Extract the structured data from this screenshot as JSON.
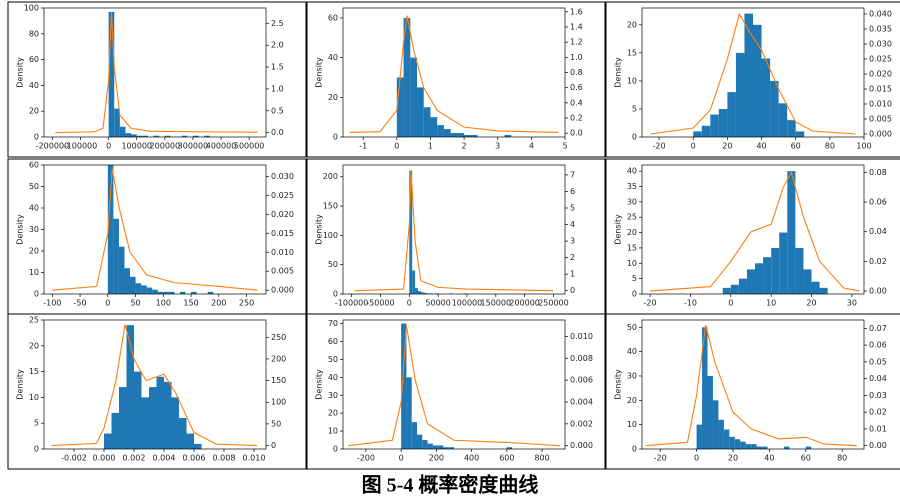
{
  "chart_data": [
    {
      "type": "histogram",
      "ylabel": "Density",
      "color": "#1f77b4",
      "bins": [
        0,
        20000,
        40000,
        60000,
        80000,
        100000,
        120000,
        140000,
        160000,
        180000,
        200000,
        220000,
        240000,
        260000,
        280000,
        300000,
        320000,
        340000,
        360000
      ],
      "values": [
        97,
        22,
        8,
        3,
        2,
        1,
        1,
        0,
        1,
        0,
        1,
        0,
        0,
        1,
        0,
        1,
        0,
        1
      ],
      "series": [
        {
          "color": "#ff7f0e",
          "axis": "y2",
          "x": [
            -190000,
            -50000,
            -20000,
            0,
            10000,
            20000,
            40000,
            80000,
            150000,
            300000,
            530000
          ],
          "values": [
            0,
            0.02,
            0.1,
            1.2,
            2.75,
            1.5,
            0.4,
            0.1,
            0.03,
            0.02,
            0.01
          ]
        }
      ],
      "xlim": [
        -230000,
        560000
      ],
      "xticks": [
        -200000,
        -100000,
        0,
        100000,
        200000,
        300000,
        400000,
        500000
      ],
      "ylim": [
        0,
        100
      ],
      "yticks": [
        0,
        20,
        40,
        60,
        80,
        100
      ],
      "y2lim": [
        -0.1,
        2.85
      ],
      "y2ticks": [
        {
          "value": 0,
          "label": "0.0"
        },
        0.5,
        {
          "value": 1,
          "label": "1.0"
        },
        1.5,
        {
          "value": 2,
          "label": "2.0"
        },
        2.5
      ]
    },
    {
      "type": "histogram",
      "ylabel": "Density",
      "color": "#1f77b4",
      "bins": [
        0,
        0.2,
        0.4,
        0.6,
        0.8,
        1,
        1.2,
        1.4,
        1.6,
        1.8,
        2,
        2.2,
        2.4,
        2.6,
        2.8,
        3,
        3.2,
        3.4
      ],
      "values": [
        30,
        60,
        40,
        25,
        15,
        10,
        6,
        4,
        2,
        2,
        1,
        1,
        0,
        0,
        0,
        0,
        1
      ],
      "series": [
        {
          "color": "#ff7f0e",
          "axis": "y2",
          "x": [
            -1.4,
            -0.5,
            0,
            0.2,
            0.3,
            0.5,
            0.8,
            1.2,
            2,
            3,
            4.8
          ],
          "values": [
            0.01,
            0.02,
            0.3,
            1.2,
            1.55,
            1.1,
            0.6,
            0.3,
            0.08,
            0.03,
            0.01
          ]
        }
      ],
      "xlim": [
        -1.6,
        5
      ],
      "xticks": [
        -1,
        0,
        1,
        2,
        3,
        4,
        5
      ],
      "ylim": [
        0,
        65
      ],
      "yticks": [
        0,
        20,
        40,
        60
      ],
      "y2lim": [
        -0.05,
        1.65
      ],
      "y2ticks": [
        {
          "value": 0,
          "label": "0.0"
        },
        0.2,
        0.4,
        0.6,
        0.8,
        {
          "value": 1,
          "label": "1.0"
        },
        1.2,
        1.4,
        1.6
      ]
    },
    {
      "type": "histogram",
      "ylabel": "Density",
      "color": "#1f77b4",
      "bins": [
        0,
        5,
        10,
        15,
        20,
        25,
        30,
        35,
        40,
        45,
        50,
        55,
        60,
        65
      ],
      "values": [
        1,
        2,
        4,
        5,
        8,
        15,
        22,
        20,
        14,
        10,
        6,
        3,
        1
      ],
      "series": [
        {
          "color": "#ff7f0e",
          "axis": "y2",
          "x": [
            -25,
            0,
            10,
            20,
            27,
            33,
            40,
            50,
            60,
            70,
            95
          ],
          "values": [
            0,
            0.002,
            0.008,
            0.025,
            0.04,
            0.034,
            0.028,
            0.015,
            0.004,
            0.001,
            0
          ]
        }
      ],
      "xlim": [
        -30,
        100
      ],
      "xticks": [
        -20,
        0,
        20,
        40,
        60,
        80,
        100
      ],
      "ylim": [
        0,
        23
      ],
      "yticks": [
        0,
        5,
        10,
        15,
        20
      ],
      "y2lim": [
        -0.001,
        0.042
      ],
      "y2ticks": [
        {
          "value": 0,
          "label": "0.000"
        },
        0.005,
        {
          "value": 0.01,
          "label": "0.010"
        },
        0.015,
        {
          "value": 0.02,
          "label": "0.020"
        },
        0.025,
        {
          "value": 0.03,
          "label": "0.030"
        },
        0.035,
        {
          "value": 0.04,
          "label": "0.040"
        }
      ]
    },
    {
      "type": "histogram",
      "ylabel": "Density",
      "color": "#1f77b4",
      "bins": [
        0,
        10,
        20,
        30,
        40,
        50,
        60,
        70,
        80,
        90,
        100,
        110,
        120,
        130,
        140,
        150,
        160,
        170,
        180,
        190,
        200
      ],
      "values": [
        60,
        35,
        22,
        12,
        8,
        5,
        4,
        3,
        2,
        1,
        1,
        1,
        0,
        1,
        0,
        1,
        0,
        0,
        1,
        0
      ],
      "series": [
        {
          "color": "#ff7f0e",
          "axis": "y2",
          "x": [
            -100,
            -20,
            0,
            8,
            20,
            40,
            70,
            120,
            200,
            270
          ],
          "values": [
            0,
            0.001,
            0.015,
            0.032,
            0.022,
            0.01,
            0.004,
            0.002,
            0.001,
            0
          ]
        }
      ],
      "xlim": [
        -115,
        285
      ],
      "xticks": [
        -100,
        -50,
        0,
        50,
        100,
        150,
        200,
        250
      ],
      "ylim": [
        0,
        60
      ],
      "yticks": [
        0,
        10,
        20,
        30,
        40,
        50,
        60
      ],
      "y2lim": [
        -0.001,
        0.033
      ],
      "y2ticks": [
        {
          "value": 0,
          "label": "0.000"
        },
        0.005,
        {
          "value": 0.01,
          "label": "0.010"
        },
        0.015,
        {
          "value": 0.02,
          "label": "0.020"
        },
        0.025,
        {
          "value": 0.03,
          "label": "0.030"
        }
      ]
    },
    {
      "type": "histogram",
      "ylabel": "Density",
      "color": "#1f77b4",
      "bins": [
        0,
        5000,
        10000,
        15000,
        20000,
        25000,
        30000,
        35000,
        40000,
        45000,
        50000,
        55000,
        60000,
        65000,
        70000,
        75000,
        80000,
        85000,
        90000,
        95000,
        100000
      ],
      "values": [
        210,
        40,
        10,
        5,
        3,
        2,
        1,
        1,
        0,
        1,
        0,
        0,
        0,
        0,
        1,
        0,
        0,
        0,
        0,
        1
      ],
      "series": [
        {
          "color": "#ff7f0e",
          "axis": "y2",
          "x": [
            -95000,
            -10000,
            0,
            3000,
            10000,
            20000,
            50000,
            100000,
            250000
          ],
          "values": [
            0,
            0.1,
            4,
            7.3,
            3,
            0.6,
            0.2,
            0.1,
            0
          ]
        }
      ],
      "xlim": [
        -115000,
        270000
      ],
      "xticks": [
        -100000,
        -50000,
        0,
        50000,
        100000,
        150000,
        200000,
        250000
      ],
      "ylim": [
        0,
        220
      ],
      "yticks": [
        0,
        50,
        100,
        150,
        200
      ],
      "y2lim": [
        -0.2,
        7.6
      ],
      "y2ticks": [
        0,
        1,
        2,
        3,
        4,
        5,
        6,
        7
      ]
    },
    {
      "type": "histogram",
      "ylabel": "Density",
      "color": "#1f77b4",
      "bins": [
        -2,
        0,
        2,
        4,
        6,
        8,
        10,
        12,
        14,
        16,
        18,
        20,
        22,
        24
      ],
      "values": [
        2,
        3,
        5,
        8,
        10,
        12,
        15,
        20,
        40,
        15,
        8,
        4,
        2
      ],
      "series": [
        {
          "color": "#ff7f0e",
          "axis": "y2",
          "x": [
            -20,
            -5,
            0,
            5,
            10,
            13,
            15,
            18,
            22,
            28,
            32
          ],
          "values": [
            0,
            0.003,
            0.02,
            0.04,
            0.045,
            0.07,
            0.08,
            0.05,
            0.02,
            0.002,
            0
          ]
        }
      ],
      "xlim": [
        -22,
        33
      ],
      "xticks": [
        -20,
        -10,
        0,
        10,
        20,
        30
      ],
      "ylim": [
        0,
        42
      ],
      "yticks": [
        0,
        5,
        10,
        15,
        20,
        25,
        30,
        35,
        40
      ],
      "y2lim": [
        -0.002,
        0.085
      ],
      "y2ticks": [
        {
          "value": 0,
          "label": "0.00"
        },
        0.02,
        0.04,
        0.06,
        0.08
      ]
    },
    {
      "type": "histogram",
      "ylabel": "Density",
      "color": "#1f77b4",
      "bins": [
        0,
        0.0005,
        0.001,
        0.0015,
        0.002,
        0.0025,
        0.003,
        0.0035,
        0.004,
        0.0045,
        0.005,
        0.0055,
        0.006,
        0.0065
      ],
      "values": [
        3,
        7,
        12,
        24,
        15,
        10,
        12,
        14,
        13,
        10,
        6,
        3,
        1
      ],
      "series": [
        {
          "color": "#ff7f0e",
          "axis": "y2",
          "x": [
            -0.0035,
            -0.0005,
            0,
            0.0008,
            0.0014,
            0.002,
            0.0028,
            0.004,
            0.0048,
            0.006,
            0.0075,
            0.0102
          ],
          "values": [
            0,
            5,
            40,
            150,
            280,
            200,
            150,
            165,
            120,
            30,
            3,
            0
          ]
        }
      ],
      "xlim": [
        -0.004,
        0.0108
      ],
      "xticks": [
        {
          "value": -0.002,
          "label": "-0.002"
        },
        {
          "value": 0,
          "label": "0.000"
        },
        {
          "value": 0.002,
          "label": "0.002"
        },
        {
          "value": 0.004,
          "label": "0.004"
        },
        {
          "value": 0.006,
          "label": "0.006"
        },
        {
          "value": 0.008,
          "label": "0.008"
        },
        {
          "value": 0.01,
          "label": "0.010"
        }
      ],
      "ylim": [
        0,
        25
      ],
      "yticks": [
        0,
        5,
        10,
        15,
        20,
        25
      ],
      "y2lim": [
        -8,
        290
      ],
      "y2ticks": [
        0,
        50,
        100,
        150,
        200,
        250
      ]
    },
    {
      "type": "histogram",
      "ylabel": "Density",
      "color": "#1f77b4",
      "bins": [
        0,
        30,
        60,
        90,
        120,
        150,
        180,
        210,
        240,
        270,
        300,
        330,
        360,
        390,
        420,
        450,
        480,
        510,
        540,
        570,
        600,
        630,
        660
      ],
      "values": [
        70,
        40,
        15,
        8,
        5,
        3,
        2,
        2,
        1,
        1,
        0,
        0,
        0,
        0,
        0,
        0,
        0,
        0,
        0,
        0,
        1,
        0
      ],
      "series": [
        {
          "color": "#ff7f0e",
          "axis": "y2",
          "x": [
            -300,
            -50,
            0,
            30,
            80,
            150,
            300,
            600,
            900
          ],
          "values": [
            0,
            0.0005,
            0.004,
            0.011,
            0.006,
            0.002,
            0.0005,
            0.0003,
            0
          ]
        }
      ],
      "xlim": [
        -330,
        930
      ],
      "xticks": [
        -200,
        0,
        200,
        400,
        600,
        800
      ],
      "ylim": [
        0,
        72
      ],
      "yticks": [
        0,
        10,
        20,
        30,
        40,
        50,
        60,
        70
      ],
      "y2lim": [
        -0.0003,
        0.0115
      ],
      "y2ticks": [
        {
          "value": 0,
          "label": "0.000"
        },
        0.002,
        0.004,
        0.006,
        0.008,
        {
          "value": 0.01,
          "label": "0.010"
        }
      ]
    },
    {
      "type": "histogram",
      "ylabel": "Density",
      "color": "#1f77b4",
      "bins": [
        0,
        3,
        6,
        9,
        12,
        15,
        18,
        21,
        24,
        27,
        30,
        33,
        36,
        39,
        42,
        45,
        48,
        51,
        54,
        57,
        60,
        63
      ],
      "values": [
        10,
        50,
        30,
        20,
        12,
        8,
        5,
        4,
        3,
        2,
        2,
        1,
        1,
        0,
        0,
        0,
        1,
        0,
        0,
        0,
        1
      ],
      "series": [
        {
          "color": "#ff7f0e",
          "axis": "y2",
          "x": [
            -28,
            -5,
            0,
            5,
            10,
            20,
            30,
            45,
            60,
            70,
            88
          ],
          "values": [
            0,
            0.002,
            0.03,
            0.072,
            0.05,
            0.02,
            0.01,
            0.004,
            0.005,
            0.001,
            0
          ]
        }
      ],
      "xlim": [
        -30,
        92
      ],
      "xticks": [
        -20,
        0,
        20,
        40,
        60,
        80
      ],
      "ylim": [
        0,
        53
      ],
      "yticks": [
        0,
        10,
        20,
        30,
        40,
        50
      ],
      "y2lim": [
        -0.002,
        0.075
      ],
      "y2ticks": [
        {
          "value": 0,
          "label": "0.00"
        },
        0.01,
        0.02,
        0.03,
        0.04,
        0.05,
        0.06,
        0.07
      ]
    }
  ],
  "caption": "图 5-4 概率密度曲线"
}
